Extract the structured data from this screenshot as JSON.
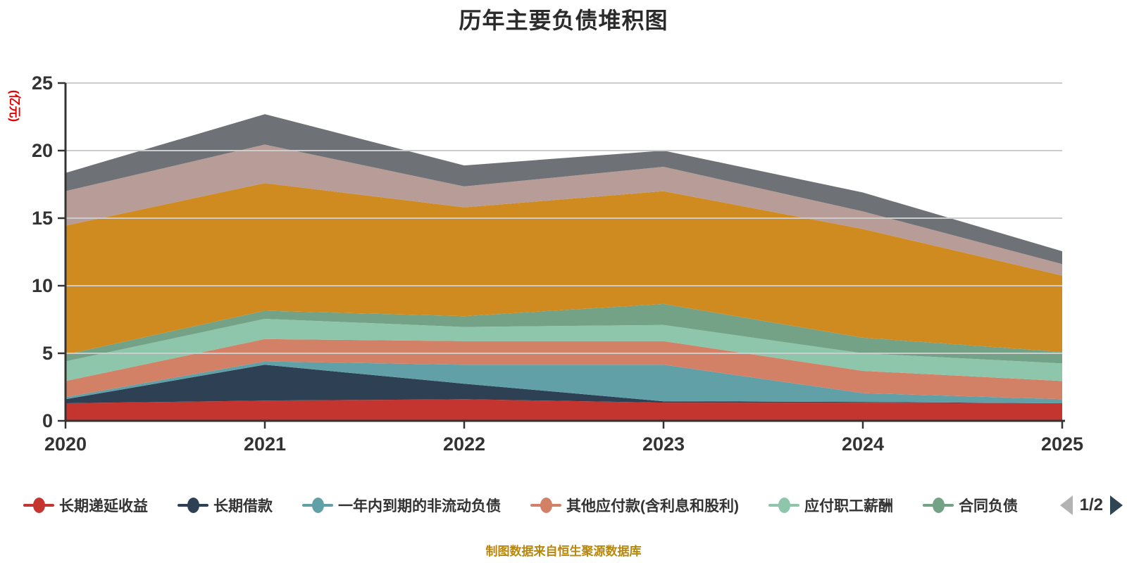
{
  "title": "历年主要负债堆积图",
  "y_axis": {
    "name": "(亿元)",
    "name_color": "#e60000",
    "tick_labels": [
      "0",
      "5",
      "10",
      "15",
      "20",
      "25"
    ]
  },
  "x_axis": {
    "tick_labels": [
      "2020",
      "2021",
      "2022",
      "2023",
      "2024",
      "2025"
    ]
  },
  "legend": {
    "items": [
      {
        "label": "长期递延收益",
        "color": "#c43530"
      },
      {
        "label": "长期借款",
        "color": "#2e4154"
      },
      {
        "label": "一年内到期的非流动负债",
        "color": "#62a0a8"
      },
      {
        "label": "其他应付款(含利息和股利)",
        "color": "#d28066"
      },
      {
        "label": "应付职工薪酬",
        "color": "#8ec6ab"
      },
      {
        "label": "合同负债",
        "color": "#74a287"
      }
    ],
    "pager": {
      "label": "1/2",
      "prev_color": "#b3b3b3",
      "next_color": "#2f4554"
    }
  },
  "footer": "制图数据来自恒生聚源数据库",
  "colors": {
    "axis": "#333333",
    "gridline": "#cccccc",
    "tick_text": "#333333",
    "title_text": "#2b2b2b",
    "footer_text": "#b8860b"
  },
  "chart_data": {
    "type": "area",
    "stacked": true,
    "title": "历年主要负债堆积图",
    "ylabel": "(亿元)",
    "ylim": [
      0,
      25
    ],
    "y_ticks": [
      0,
      5,
      10,
      15,
      20,
      25
    ],
    "grid": true,
    "legend_position": "bottom",
    "x": [
      2020,
      2021,
      2022,
      2023,
      2024,
      2025
    ],
    "series": [
      {
        "name": "长期递延收益",
        "color": "#c43530",
        "values": [
          1.3,
          1.5,
          1.6,
          1.35,
          1.35,
          1.3
        ]
      },
      {
        "name": "长期借款",
        "color": "#2e4154",
        "values": [
          0.3,
          2.65,
          1.15,
          0.1,
          0.05,
          0
        ]
      },
      {
        "name": "一年内到期的非流动负债",
        "color": "#62a0a8",
        "values": [
          0.15,
          0.25,
          1.4,
          2.7,
          0.65,
          0.3
        ]
      },
      {
        "name": "其他应付款(含利息和股利)",
        "color": "#d28066",
        "values": [
          1.2,
          1.65,
          1.75,
          1.75,
          1.65,
          1.35
        ]
      },
      {
        "name": "应付职工薪酬",
        "color": "#8ec6ab",
        "values": [
          1.45,
          1.5,
          1.05,
          1.2,
          1.3,
          1.3
        ]
      },
      {
        "name": "合同负债",
        "color": "#74a287",
        "values": [
          0.5,
          0.6,
          0.8,
          1.55,
          1.15,
          0.85
        ]
      },
      {
        "name": "",
        "color": "#cf8b20",
        "values": [
          9.55,
          9.45,
          8.05,
          8.35,
          8.05,
          5.65
        ]
      },
      {
        "name": "",
        "color": "#b79c98",
        "values": [
          2.55,
          2.85,
          1.55,
          1.8,
          1.3,
          0.85
        ]
      },
      {
        "name": "",
        "color": "#6e7175",
        "values": [
          1.35,
          2.25,
          1.55,
          1.2,
          1.4,
          0.95
        ]
      }
    ],
    "totals": [
      18.35,
      22.7,
      18.9,
      20.0,
      16.9,
      12.55
    ]
  }
}
